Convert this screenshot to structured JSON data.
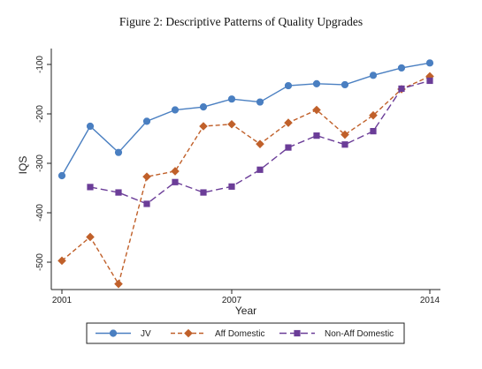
{
  "figure": {
    "title": "Figure 2: Descriptive Patterns of Quality Upgrades"
  },
  "chart_data": {
    "type": "line",
    "title": "Figure 2: Descriptive Patterns of Quality Upgrades",
    "xlabel": "Year",
    "ylabel": "IQS",
    "xlim": [
      2001,
      2014
    ],
    "ylim": [
      -545,
      -85
    ],
    "x_ticks": [
      2001,
      2007,
      2014
    ],
    "y_ticks": [
      -100,
      -200,
      -300,
      -400,
      -500
    ],
    "grid": false,
    "legend_position": "bottom",
    "series": [
      {
        "name": "JV",
        "color": "#4a7fc1",
        "line_style": "solid",
        "marker": "circle",
        "x": [
          2001,
          2002,
          2003,
          2004,
          2005,
          2006,
          2007,
          2008,
          2009,
          2010,
          2011,
          2012,
          2013,
          2014
        ],
        "values": [
          -325,
          -225,
          -278,
          -215,
          -192,
          -186,
          -170,
          -176,
          -143,
          -139,
          -141,
          -122,
          -107,
          -97
        ]
      },
      {
        "name": "Aff Domestic",
        "color": "#c0602a",
        "line_style": "dashed",
        "marker": "diamond",
        "x": [
          2001,
          2002,
          2003,
          2004,
          2005,
          2006,
          2007,
          2008,
          2009,
          2010,
          2011,
          2012,
          2013,
          2014
        ],
        "values": [
          -497,
          -449,
          -544,
          -327,
          -316,
          -225,
          -221,
          -261,
          -218,
          -192,
          -242,
          -203,
          -150,
          -124
        ]
      },
      {
        "name": "Non-Aff Domestic",
        "color": "#6b3d98",
        "line_style": "longdash",
        "marker": "square",
        "x": [
          2002,
          2003,
          2004,
          2005,
          2006,
          2007,
          2008,
          2009,
          2010,
          2011,
          2012,
          2013,
          2014
        ],
        "values": [
          -348,
          -359,
          -382,
          -338,
          -359,
          -347,
          -313,
          -268,
          -244,
          -262,
          -235,
          -149,
          -133
        ]
      }
    ]
  }
}
